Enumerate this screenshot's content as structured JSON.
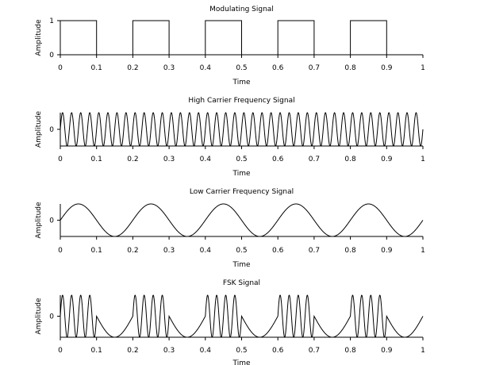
{
  "chart_data": [
    {
      "type": "line",
      "title": "Modulating Signal",
      "xlabel": "Time",
      "ylabel": "Amplitude",
      "xlim": [
        0,
        1
      ],
      "ylim": [
        0,
        1
      ],
      "x_ticks": [
        "0",
        "0.1",
        "0.2",
        "0.3",
        "0.4",
        "0.5",
        "0.6",
        "0.7",
        "0.8",
        "0.9",
        "1"
      ],
      "y_ticks": [
        "0",
        "1"
      ],
      "series": [
        {
          "kind": "square",
          "high": 1,
          "low": 0,
          "segments": [
            {
              "x_start": 0.0,
              "x_end": 0.1,
              "value": 1
            },
            {
              "x_start": 0.1,
              "x_end": 0.2,
              "value": 0
            },
            {
              "x_start": 0.2,
              "x_end": 0.3,
              "value": 1
            },
            {
              "x_start": 0.3,
              "x_end": 0.4,
              "value": 0
            },
            {
              "x_start": 0.4,
              "x_end": 0.5,
              "value": 1
            },
            {
              "x_start": 0.5,
              "x_end": 0.6,
              "value": 0
            },
            {
              "x_start": 0.6,
              "x_end": 0.7,
              "value": 1
            },
            {
              "x_start": 0.7,
              "x_end": 0.8,
              "value": 0
            },
            {
              "x_start": 0.8,
              "x_end": 0.9,
              "value": 1
            },
            {
              "x_start": 0.9,
              "x_end": 1.0,
              "value": 0
            }
          ]
        }
      ]
    },
    {
      "type": "line",
      "title": "High Carrier Frequency Signal",
      "xlabel": "Time",
      "ylabel": "Amplitude",
      "xlim": [
        0,
        1
      ],
      "ylim": [
        -1,
        1
      ],
      "x_ticks": [
        "0",
        "0.1",
        "0.2",
        "0.3",
        "0.4",
        "0.5",
        "0.6",
        "0.7",
        "0.8",
        "0.9",
        "1"
      ],
      "y_ticks": [
        "0"
      ],
      "series": [
        {
          "kind": "sine",
          "amplitude": 1,
          "frequency_cycles": 40
        }
      ]
    },
    {
      "type": "line",
      "title": "Low Carrier Frequency Signal",
      "xlabel": "Time",
      "ylabel": "Amplitude",
      "xlim": [
        0,
        1
      ],
      "ylim": [
        -1,
        1
      ],
      "x_ticks": [
        "0",
        "0.1",
        "0.2",
        "0.3",
        "0.4",
        "0.5",
        "0.6",
        "0.7",
        "0.8",
        "0.9",
        "1"
      ],
      "y_ticks": [
        "0"
      ],
      "series": [
        {
          "kind": "sine",
          "amplitude": 1,
          "frequency_cycles": 5
        }
      ]
    },
    {
      "type": "line",
      "title": "FSK Signal",
      "xlabel": "Time",
      "ylabel": "Amplitude",
      "xlim": [
        0,
        1
      ],
      "ylim": [
        -1,
        1
      ],
      "x_ticks": [
        "0",
        "0.1",
        "0.2",
        "0.3",
        "0.4",
        "0.5",
        "0.6",
        "0.7",
        "0.8",
        "0.9",
        "1"
      ],
      "y_ticks": [
        "0"
      ],
      "series": [
        {
          "kind": "fsk",
          "amplitude": 1,
          "frequency_when_1": 40,
          "frequency_when_0": 5,
          "segments": [
            {
              "x_start": 0.0,
              "x_end": 0.1,
              "bit": 1
            },
            {
              "x_start": 0.1,
              "x_end": 0.2,
              "bit": 0
            },
            {
              "x_start": 0.2,
              "x_end": 0.3,
              "bit": 1
            },
            {
              "x_start": 0.3,
              "x_end": 0.4,
              "bit": 0
            },
            {
              "x_start": 0.4,
              "x_end": 0.5,
              "bit": 1
            },
            {
              "x_start": 0.5,
              "x_end": 0.6,
              "bit": 0
            },
            {
              "x_start": 0.6,
              "x_end": 0.7,
              "bit": 1
            },
            {
              "x_start": 0.7,
              "x_end": 0.8,
              "bit": 0
            },
            {
              "x_start": 0.8,
              "x_end": 0.9,
              "bit": 1
            },
            {
              "x_start": 0.9,
              "x_end": 1.0,
              "bit": 0
            }
          ]
        }
      ]
    }
  ]
}
